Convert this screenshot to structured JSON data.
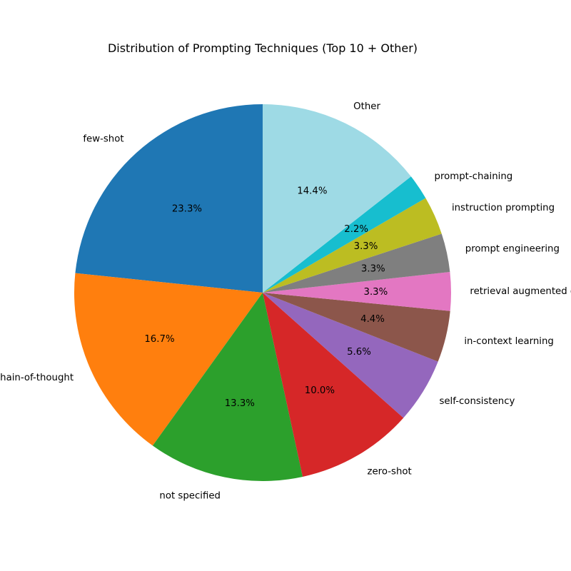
{
  "chart_data": {
    "type": "pie",
    "title": "Distribution of Prompting Techniques (Top 10 + Other)",
    "start_angle_deg": 90,
    "direction": "counterclockwise",
    "slices": [
      {
        "label": "few-shot",
        "value": 23.3,
        "pct_text": "23.3%",
        "color": "#1f77b4"
      },
      {
        "label": "chain-of-thought",
        "value": 16.7,
        "pct_text": "16.7%",
        "color": "#ff7f0e"
      },
      {
        "label": "not specified",
        "value": 13.3,
        "pct_text": "13.3%",
        "color": "#2ca02c"
      },
      {
        "label": "zero-shot",
        "value": 10.0,
        "pct_text": "10.0%",
        "color": "#d62728"
      },
      {
        "label": "self-consistency",
        "value": 5.6,
        "pct_text": "5.6%",
        "color": "#9467bd"
      },
      {
        "label": "in-context learning",
        "value": 4.4,
        "pct_text": "4.4%",
        "color": "#8c564b"
      },
      {
        "label": "retrieval augmented generation",
        "value": 3.3,
        "pct_text": "3.3%",
        "color": "#e377c2"
      },
      {
        "label": "prompt engineering",
        "value": 3.3,
        "pct_text": "3.3%",
        "color": "#7f7f7f"
      },
      {
        "label": "instruction prompting",
        "value": 3.3,
        "pct_text": "3.3%",
        "color": "#bcbd22"
      },
      {
        "label": "prompt-chaining",
        "value": 2.2,
        "pct_text": "2.2%",
        "color": "#17becf"
      },
      {
        "label": "Other",
        "value": 14.4,
        "pct_text": "14.4%",
        "color": "#9edae5"
      }
    ]
  }
}
